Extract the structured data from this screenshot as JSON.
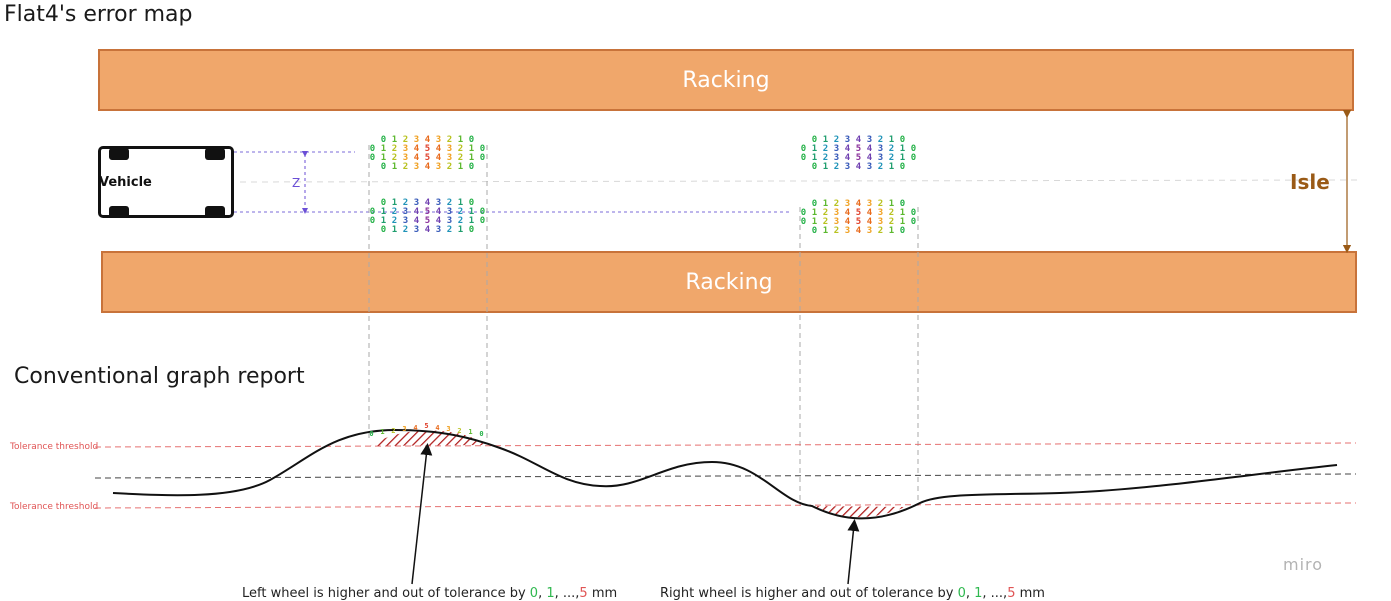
{
  "title": "Flat4's error map",
  "racking_top": "Racking",
  "racking_bottom": "Racking",
  "isle_label": "Isle",
  "vehicle_label": "Vehicle",
  "z_label": "Z",
  "section_title": "Conventional graph report",
  "tolerance_top": "Tolerance threshold",
  "tolerance_bottom": "Tolerance threshold",
  "caption_left": {
    "prefix": "Left wheel is higher and out of tolerance by ",
    "v0": "0",
    "sep1": ", ",
    "v1": "1",
    "sep2": ", ...,",
    "v5": "5",
    "suffix": " mm"
  },
  "caption_right": {
    "prefix": "Right wheel is higher and out of tolerance  by ",
    "v0": "0",
    "sep1": ", ",
    "v1": "1",
    "sep2": ", ...,",
    "v5": "5",
    "suffix": " mm"
  },
  "watermark": "miro",
  "error_rows": {
    "long": [
      "0",
      "1",
      "2",
      "3",
      "4",
      "5",
      "4",
      "3",
      "2",
      "1",
      "0"
    ],
    "short": [
      "0",
      "1",
      "2",
      "3",
      "4",
      "3",
      "2",
      "1",
      "0"
    ]
  },
  "colors": {
    "racking_fill": "#f0a76b",
    "isle": "#9a5a16",
    "tolerance": "#e05555",
    "hatch": "#b01c1c",
    "v0": "#2fb84f",
    "v5": "#e05555"
  }
}
